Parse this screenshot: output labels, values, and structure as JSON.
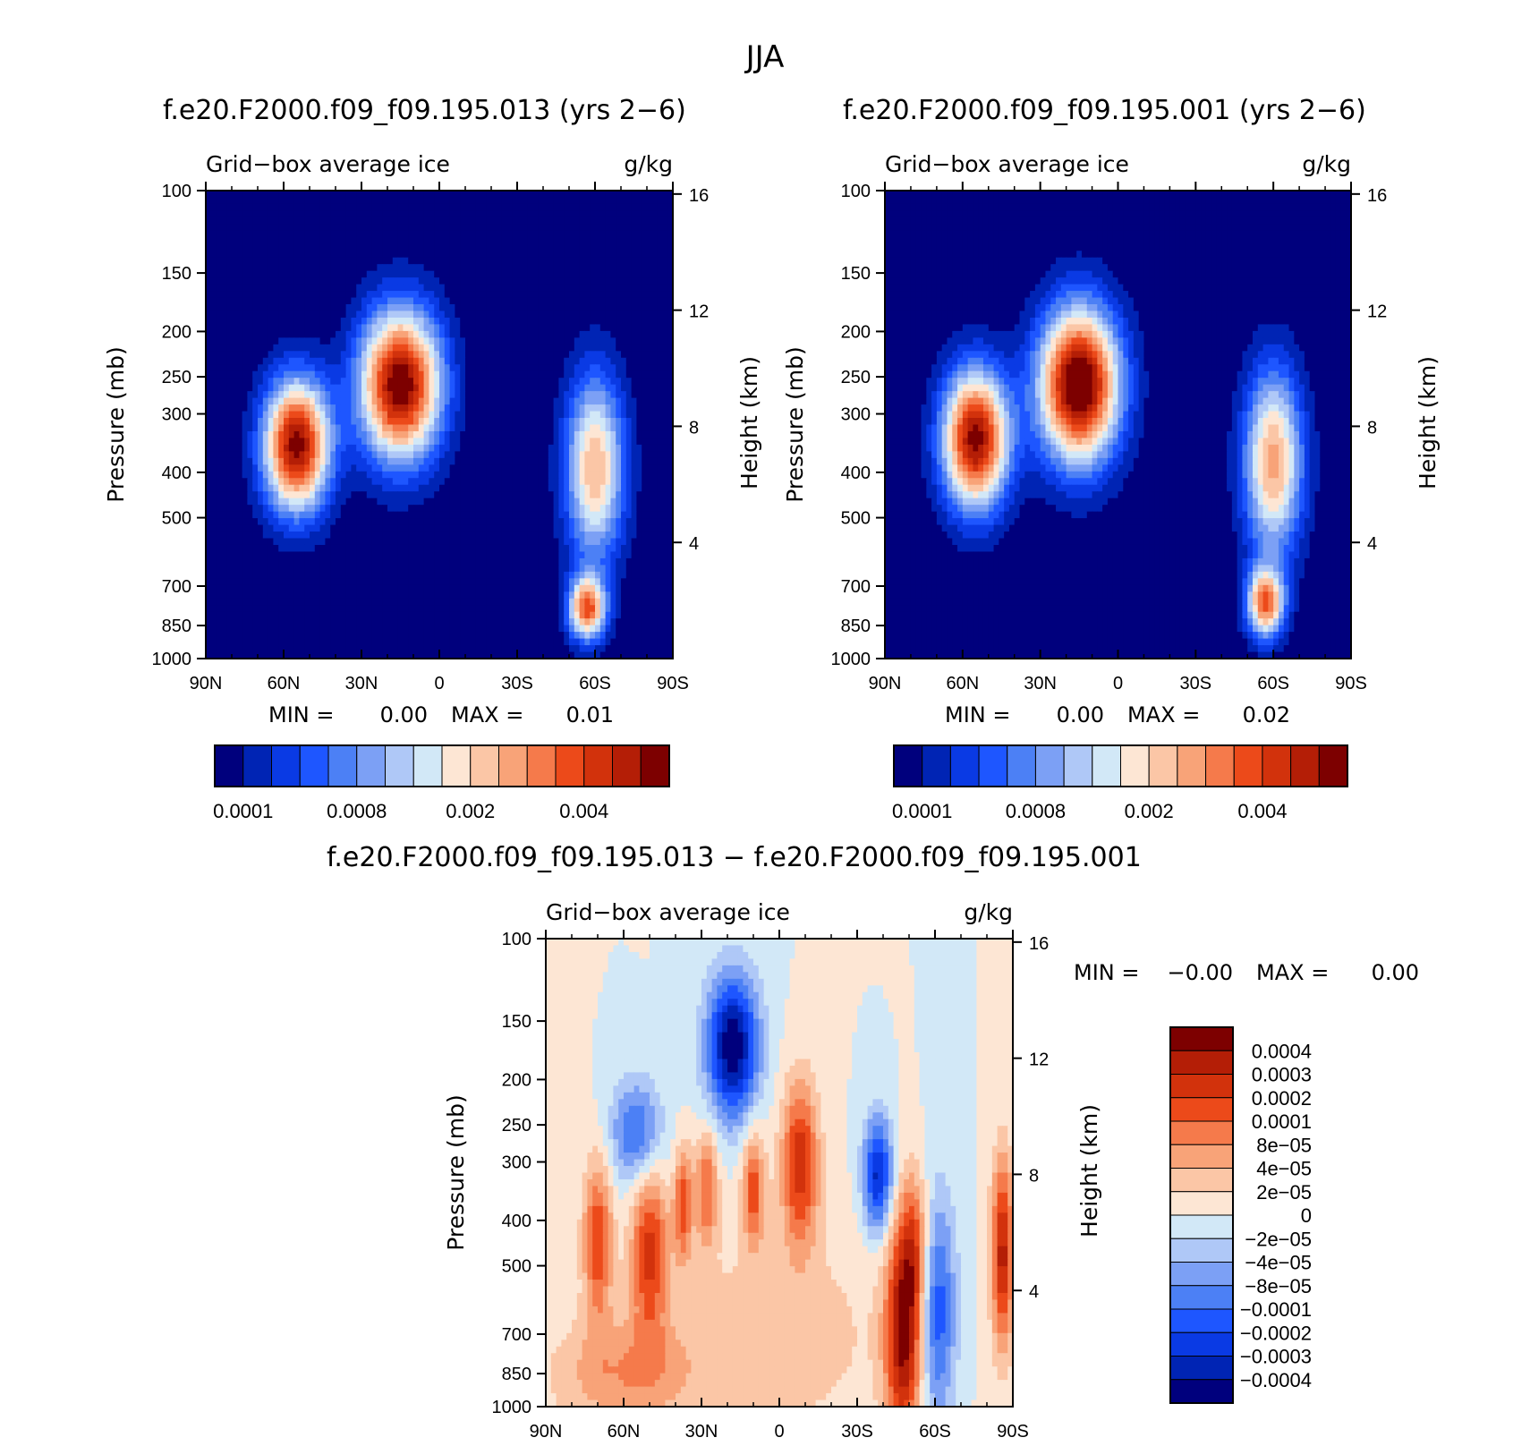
{
  "page_title": "JJA",
  "colors": {
    "seq": [
      "#00007d",
      "#0024b4",
      "#0a3ae4",
      "#1e56ff",
      "#4c80f5",
      "#7ca0f5",
      "#afc8f7",
      "#d2e8f7",
      "#fde6d4",
      "#fbc6a6",
      "#f8a378",
      "#f57a4b",
      "#ec4a1a",
      "#d2320c",
      "#b41e06",
      "#7d0000"
    ],
    "div": [
      "#00007d",
      "#0024b4",
      "#0a3ae4",
      "#1e56ff",
      "#4c80f5",
      "#7ca0f5",
      "#afc8f7",
      "#d2e8f7",
      "#fde6d4",
      "#fbc6a6",
      "#f8a378",
      "#f57a4b",
      "#ec4a1a",
      "#d2320c",
      "#b41e06",
      "#7d0000"
    ]
  },
  "chart_data": [
    {
      "type": "heatmap",
      "title": "f.e20.F2000.f09_f09.195.013 (yrs 2−6)",
      "left_label": "Grid−box average ice",
      "right_label": "g/kg",
      "xlabel": "",
      "ylabel": "Pressure (mb)",
      "y2label": "Height (km)",
      "x_ticks": [
        "90N",
        "60N",
        "30N",
        "0",
        "30S",
        "60S",
        "90S"
      ],
      "y_ticks": [
        "100",
        "150",
        "200",
        "250",
        "300",
        "400",
        "500",
        "700",
        "850",
        "1000"
      ],
      "y_log": true,
      "y2_ticks": [
        "16",
        "12",
        "8",
        "4"
      ],
      "min_label": "MIN =",
      "min_value": "0.00",
      "max_label": "MAX =",
      "max_value": "0.01",
      "colorbar_labels": [
        "0.0001",
        "0.0008",
        "0.002",
        "0.004"
      ],
      "features": [
        {
          "lat": 55,
          "p": 350,
          "v": 1.0,
          "sx": 9,
          "sp": 0.23
        },
        {
          "lat": 15,
          "p": 260,
          "v": 1.05,
          "sx": 11,
          "sp": 0.26
        },
        {
          "lat": -60,
          "p": 390,
          "v": 0.65,
          "sx": 8,
          "sp": 0.32
        },
        {
          "lat": -57,
          "p": 780,
          "v": 0.78,
          "sx": 5,
          "sp": 0.11
        }
      ]
    },
    {
      "type": "heatmap",
      "title": "f.e20.F2000.f09_f09.195.001 (yrs 2−6)",
      "left_label": "Grid−box average ice",
      "right_label": "g/kg",
      "xlabel": "",
      "ylabel": "Pressure (mb)",
      "y2label": "Height (km)",
      "x_ticks": [
        "90N",
        "60N",
        "30N",
        "0",
        "30S",
        "60S",
        "90S"
      ],
      "y_ticks": [
        "100",
        "150",
        "200",
        "250",
        "300",
        "400",
        "500",
        "700",
        "850",
        "1000"
      ],
      "y_log": true,
      "y2_ticks": [
        "16",
        "12",
        "8",
        "4"
      ],
      "min_label": "MIN =",
      "min_value": "0.00",
      "max_label": "MAX =",
      "max_value": "0.02",
      "colorbar_labels": [
        "0.0001",
        "0.0008",
        "0.002",
        "0.004"
      ],
      "features": [
        {
          "lat": 55,
          "p": 340,
          "v": 1.0,
          "sx": 9,
          "sp": 0.24
        },
        {
          "lat": 15,
          "p": 260,
          "v": 1.1,
          "sx": 11,
          "sp": 0.27
        },
        {
          "lat": -60,
          "p": 380,
          "v": 0.68,
          "sx": 8,
          "sp": 0.32
        },
        {
          "lat": -57,
          "p": 760,
          "v": 0.76,
          "sx": 5,
          "sp": 0.12
        }
      ]
    },
    {
      "type": "heatmap",
      "title": "f.e20.F2000.f09_f09.195.013 − f.e20.F2000.f09_f09.195.001",
      "left_label": "Grid−box average ice",
      "right_label": "g/kg",
      "xlabel": "",
      "ylabel": "Pressure (mb)",
      "y2label": "Height (km)",
      "x_ticks": [
        "90N",
        "60N",
        "30N",
        "0",
        "30S",
        "60S",
        "90S"
      ],
      "y_ticks": [
        "100",
        "150",
        "200",
        "250",
        "300",
        "400",
        "500",
        "700",
        "850",
        "1000"
      ],
      "y_log": true,
      "y2_ticks": [
        "16",
        "12",
        "8",
        "4"
      ],
      "min_label": "MIN =",
      "min_value": "−0.00",
      "max_label": "MAX =",
      "max_value": "0.00",
      "colorbar_labels": [
        "0.0004",
        "0.0003",
        "0.0002",
        "0.0001",
        "8e−05",
        "4e−05",
        "2e−05",
        "0",
        "−2e−05",
        "−4e−05",
        "−8e−05",
        "−0.0001",
        "−0.0002",
        "−0.0003",
        "−0.0004"
      ],
      "features": [
        {
          "lat": 18,
          "p": 170,
          "v": -1.0,
          "sx": 7,
          "sp": 0.25
        },
        {
          "lat": 55,
          "p": 260,
          "v": -0.55,
          "sx": 7,
          "sp": 0.18
        },
        {
          "lat": 70,
          "p": 440,
          "v": 0.6,
          "sx": 4,
          "sp": 0.28
        },
        {
          "lat": 50,
          "p": 460,
          "v": 0.65,
          "sx": 5,
          "sp": 0.3
        },
        {
          "lat": 37,
          "p": 370,
          "v": 0.55,
          "sx": 2.5,
          "sp": 0.2
        },
        {
          "lat": 28,
          "p": 340,
          "v": 0.5,
          "sx": 3,
          "sp": 0.2
        },
        {
          "lat": 10,
          "p": 340,
          "v": 0.55,
          "sx": 3,
          "sp": 0.2
        },
        {
          "lat": -8,
          "p": 300,
          "v": 0.7,
          "sx": 5,
          "sp": 0.28
        },
        {
          "lat": -38,
          "p": 320,
          "v": -0.8,
          "sx": 4,
          "sp": 0.2
        },
        {
          "lat": -48,
          "p": 700,
          "v": 0.9,
          "sx": 5,
          "sp": 0.38
        },
        {
          "lat": -61,
          "p": 620,
          "v": -0.6,
          "sx": 5,
          "sp": 0.4
        },
        {
          "lat": -52,
          "p": 450,
          "v": 0.45,
          "sx": 4,
          "sp": 0.25
        },
        {
          "lat": -86,
          "p": 470,
          "v": 0.8,
          "sx": 3,
          "sp": 0.33
        },
        {
          "lat": 60,
          "p": 850,
          "v": 0.35,
          "sx": 20,
          "sp": 0.2
        },
        {
          "lat": 0,
          "p": 700,
          "v": 0.2,
          "sx": 30,
          "sp": 0.4
        }
      ]
    }
  ]
}
